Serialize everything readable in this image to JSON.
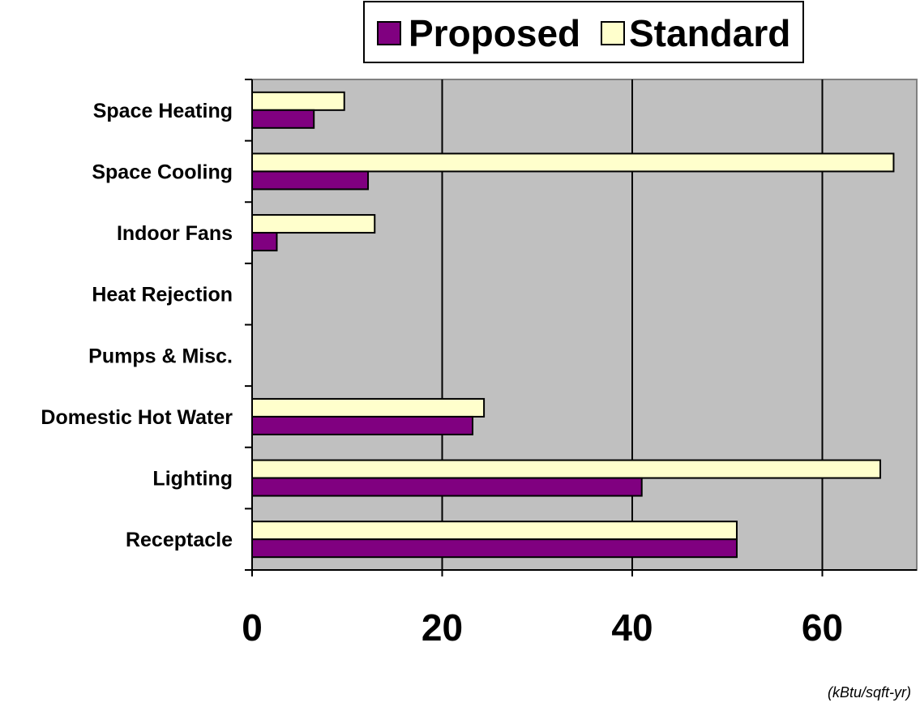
{
  "chart_data": {
    "type": "bar",
    "orientation": "horizontal",
    "categories": [
      "Space Heating",
      "Space Cooling",
      "Indoor Fans",
      "Heat Rejection",
      "Pumps & Misc.",
      "Domestic Hot Water",
      "Lighting",
      "Receptacle"
    ],
    "series": [
      {
        "name": "Proposed",
        "color": "#800080",
        "values": [
          6.5,
          12.2,
          2.6,
          0,
          0,
          23.2,
          41.0,
          51.0
        ]
      },
      {
        "name": "Standard",
        "color": "#ffffcc",
        "values": [
          9.7,
          67.5,
          12.9,
          0,
          0,
          24.4,
          66.1,
          51.0
        ]
      }
    ],
    "xlim": [
      0,
      70
    ],
    "xticks": [
      0,
      20,
      40,
      60
    ],
    "unit": "(kBtu/sqft-yr)",
    "plot_background": "#c0c0c0",
    "grid": "vertical major gridlines",
    "legend_position": "top"
  }
}
